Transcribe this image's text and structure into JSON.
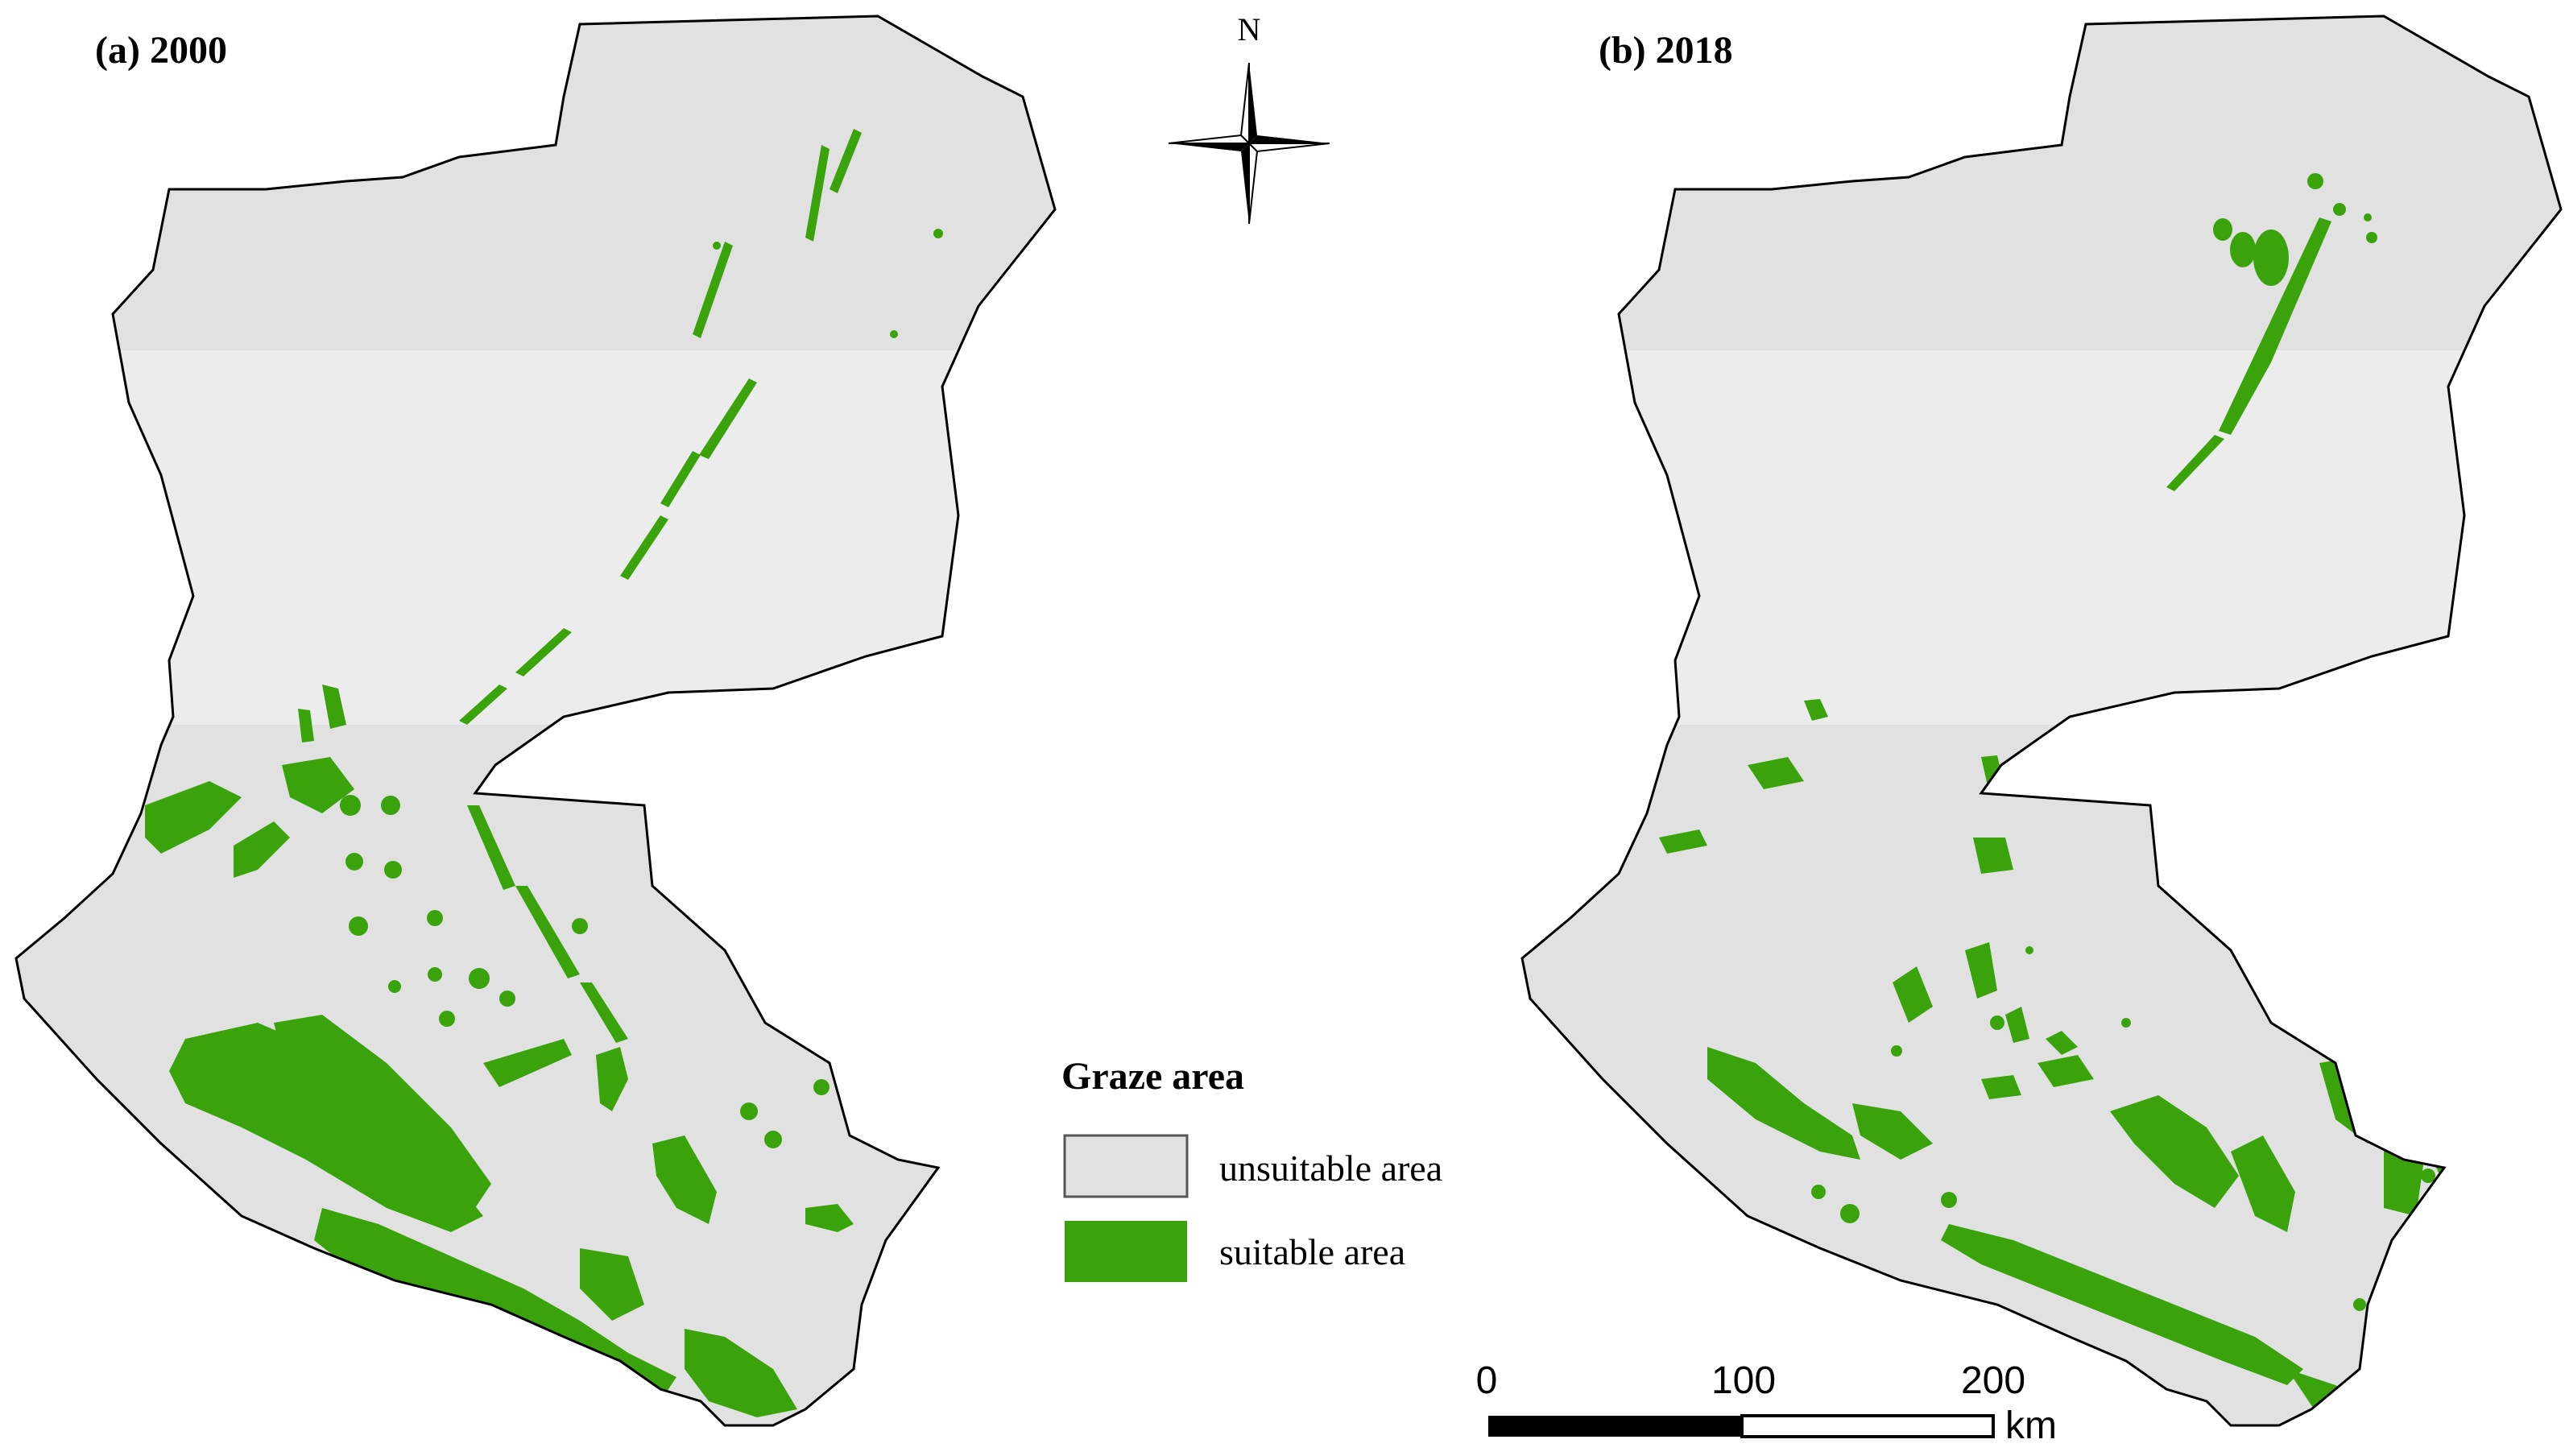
{
  "panels": [
    {
      "title": "(a) 2000"
    },
    {
      "title": "(b) 2018"
    }
  ],
  "north_arrow": {
    "label": "N"
  },
  "legend": {
    "title": "Graze area",
    "items": [
      {
        "label": "unsuitable area",
        "color": "#e1e1e1"
      },
      {
        "label": "suitable area",
        "color": "#3aa30c"
      }
    ]
  },
  "scale_bar": {
    "ticks": [
      "0",
      "100",
      "200"
    ],
    "unit": "km"
  },
  "colors": {
    "boundary": "#000000",
    "unsuitable": "#e1e1e1",
    "unsuitable_band": "#ececec",
    "suitable": "#3aa30c"
  }
}
